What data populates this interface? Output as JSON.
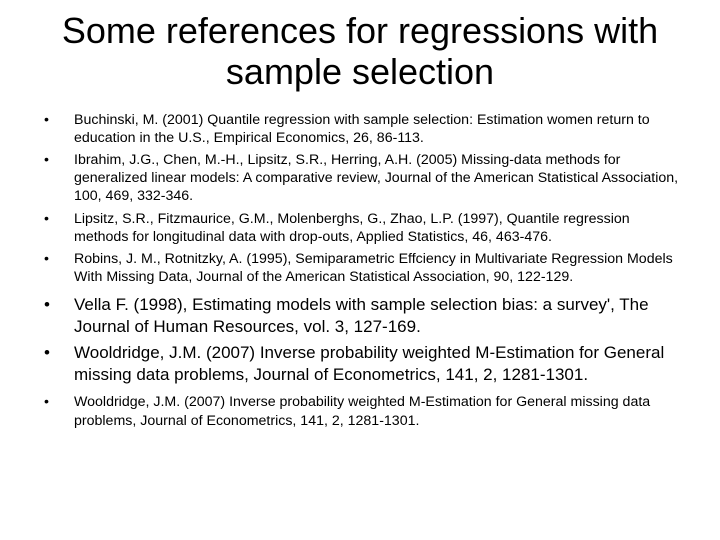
{
  "title": "Some references for regressions with sample selection",
  "items": [
    "Buchinski, M. (2001) Quantile regression with sample selection: Estimation women return to education in the U.S., Empirical Economics, 26, 86-113.",
    "Ibrahim, J.G., Chen, M.-H., Lipsitz, S.R., Herring, A.H. (2005) Missing-data methods for generalized linear models: A comparative review, Journal of the American Statistical Association, 100, 469, 332-346.",
    "Lipsitz, S.R., Fitzmaurice, G.M., Molenberghs, G., Zhao, L.P. (1997), Quantile regression methods for longitudinal data with drop-outs, Applied Statistics, 46, 463-476.",
    "Robins, J. M., Rotnitzky, A. (1995), Semiparametric Effciency in Multivariate Regression Models With Missing Data, Journal of the American Statistical Association, 90, 122-129.",
    "Vella F. (1998), Estimating models with sample selection bias: a survey', The Journal of Human Resources, vol. 3, 127-169.",
    "Wooldridge, J.M. (2007) Inverse probability weighted M-Estimation for General missing data problems, Journal of Econometrics, 141, 2, 1281-1301.",
    "Wooldridge, J.M. (2007) Inverse probability weighted M-Estimation for General missing data problems, Journal of Econometrics, 141, 2, 1281-1301."
  ],
  "styles": {
    "title_fontsize": 36,
    "small_fontsize": 14.2,
    "large_fontsize": 17,
    "background_color": "#ffffff",
    "text_color": "#000000"
  }
}
